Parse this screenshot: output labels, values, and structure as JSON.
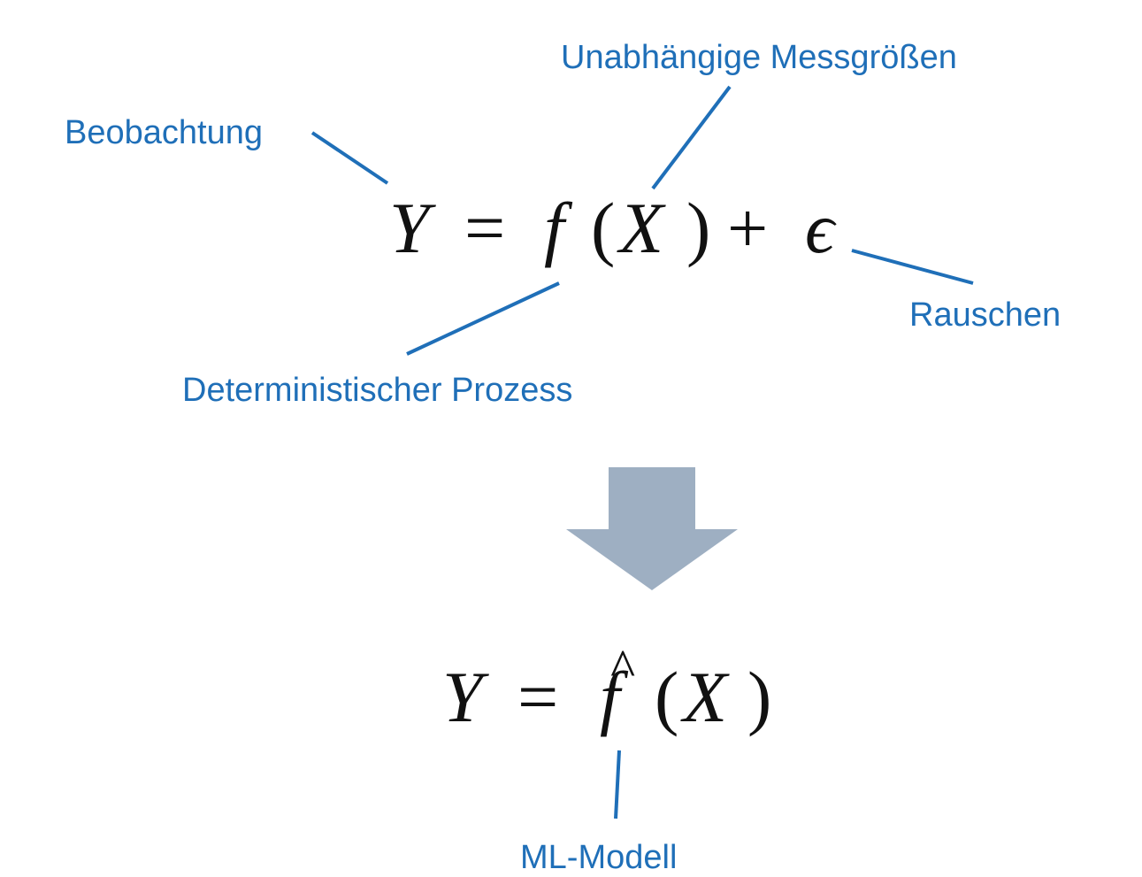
{
  "labels": {
    "beobachtung": "Beobachtung",
    "messgroessen": "Unabhängige Messgrößen",
    "prozess": "Deterministischer Prozess",
    "rauschen": "Rauschen",
    "modell": "ML-Modell"
  },
  "equations": {
    "top": {
      "Y": "Y",
      "equals": "=",
      "f": "f",
      "open_paren": "(",
      "X": "X",
      "close_paren": ")",
      "plus": "+",
      "epsilon": "ϵ"
    },
    "bottom": {
      "Y": "Y",
      "equals": "=",
      "f": "f",
      "hat": "^",
      "open_paren": "(",
      "X": "X",
      "close_paren": ")"
    }
  },
  "colors": {
    "annotation": "#1f6fb8",
    "arrow": "#9eafc2",
    "math": "#111111"
  }
}
